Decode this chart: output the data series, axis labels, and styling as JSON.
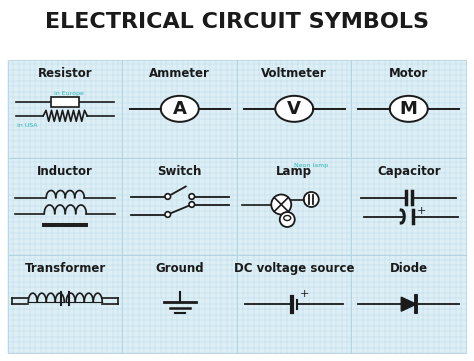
{
  "title": "ELECTRICAL CIRCUIT SYMBOLS",
  "title_fontsize": 16,
  "title_fontweight": "bold",
  "bg_color": "#ffffff",
  "grid_color": "#b8dce8",
  "cell_bg": "#ddeef5",
  "line_color": "#1a1a1a",
  "teal_color": "#2ab5b5",
  "symbol_labels": [
    [
      "Resistor",
      "Ammeter",
      "Voltmeter",
      "Motor"
    ],
    [
      "Inductor",
      "Switch",
      "Lamp",
      "Capacitor"
    ],
    [
      "Transformer",
      "Ground",
      "DC voltage source",
      "Diode"
    ]
  ],
  "label_fontsize": 8.5,
  "label_fontweight": "bold",
  "rows": 3,
  "cols": 4,
  "fig_width": 4.74,
  "fig_height": 3.61,
  "dpi": 100
}
